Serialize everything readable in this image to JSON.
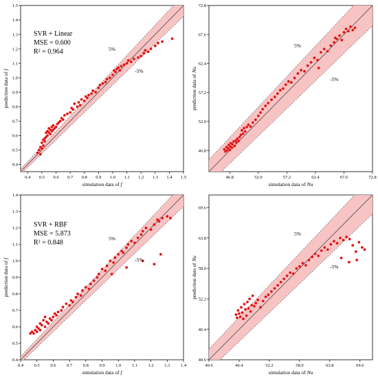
{
  "chart_data": [
    {
      "type": "scatter",
      "xlabel": "simulation data of f",
      "ylabel": "prediction data of f",
      "xlim": [
        0.35,
        1.5
      ],
      "ylim": [
        0.35,
        1.5
      ],
      "xticks": [
        "0.4",
        "0.5",
        "0.6",
        "0.7",
        "0.8",
        "0.9",
        "1.0",
        "1.1",
        "1.2",
        "1.3",
        "1.4",
        "1.5"
      ],
      "yticks": [
        "0.4",
        "0.5",
        "0.6",
        "0.7",
        "0.8",
        "0.9",
        "1.0",
        "1.1",
        "1.2",
        "1.3",
        "1.4",
        "1.5"
      ],
      "band_upper_label": "5%",
      "band_lower_label": "-5%",
      "legend": {
        "method": "SVR + Linear",
        "mse": "MSE = 0.600",
        "r2": "R² = 0.964"
      },
      "series": [
        {
          "x": [
            0.47,
            0.48,
            0.49,
            0.49,
            0.5,
            0.5,
            0.51,
            0.51,
            0.52,
            0.52,
            0.53,
            0.53,
            0.54,
            0.54,
            0.55,
            0.55,
            0.56,
            0.56,
            0.57,
            0.57,
            0.58,
            0.58,
            0.59,
            0.6,
            0.61,
            0.62,
            0.63,
            0.64,
            0.65,
            0.66,
            0.68,
            0.7,
            0.71,
            0.72,
            0.73,
            0.75,
            0.76,
            0.77,
            0.78,
            0.8,
            0.81,
            0.82,
            0.83,
            0.85,
            0.86,
            0.88,
            0.9,
            0.91,
            0.93,
            0.95,
            0.96,
            0.98,
            1.0,
            1.01,
            1.02,
            1.03,
            1.04,
            1.05,
            1.06,
            1.08,
            1.1,
            1.11,
            1.13,
            1.15,
            1.18,
            1.2,
            1.22,
            1.23,
            1.25,
            1.27,
            1.3,
            1.32,
            1.35,
            1.42
          ],
          "y": [
            0.48,
            0.5,
            0.52,
            0.47,
            0.55,
            0.51,
            0.57,
            0.53,
            0.58,
            0.56,
            0.59,
            0.62,
            0.6,
            0.63,
            0.62,
            0.65,
            0.64,
            0.61,
            0.66,
            0.63,
            0.64,
            0.67,
            0.65,
            0.66,
            0.68,
            0.69,
            0.7,
            0.72,
            0.71,
            0.74,
            0.75,
            0.76,
            0.79,
            0.78,
            0.82,
            0.8,
            0.83,
            0.81,
            0.85,
            0.84,
            0.87,
            0.86,
            0.88,
            0.89,
            0.91,
            0.9,
            0.93,
            0.95,
            0.96,
            0.97,
            0.99,
            1.0,
            1.02,
            1.05,
            1.04,
            1.06,
            1.07,
            1.05,
            1.08,
            1.09,
            1.1,
            1.12,
            1.11,
            1.13,
            1.14,
            1.15,
            1.17,
            1.19,
            1.18,
            1.2,
            1.22,
            1.24,
            1.25,
            1.27
          ]
        }
      ]
    },
    {
      "type": "scatter",
      "xlabel": "simulation data of Nu",
      "ylabel": "prediction data of Nu",
      "xlim": [
        43.0,
        72.8
      ],
      "ylim": [
        43.0,
        72.8
      ],
      "xticks": [
        "46.8",
        "52.0",
        "57.2",
        "62.4",
        "67.6",
        "72.8"
      ],
      "yticks": [
        "46.8",
        "52.0",
        "57.2",
        "62.4",
        "67.6",
        "72.8"
      ],
      "band_upper_label": "5%",
      "band_lower_label": "-5%",
      "series": [
        {
          "x": [
            45.8,
            46.0,
            46.2,
            46.3,
            46.5,
            46.6,
            46.8,
            46.9,
            47.0,
            47.2,
            47.3,
            47.5,
            47.7,
            47.9,
            48.0,
            48.2,
            48.4,
            48.6,
            48.8,
            49.0,
            49.2,
            49.4,
            49.6,
            49.9,
            50.2,
            50.6,
            51.0,
            51.5,
            52.0,
            52.4,
            52.8,
            53.3,
            53.8,
            54.4,
            55.0,
            55.5,
            56.0,
            56.5,
            57.0,
            57.5,
            58.0,
            58.6,
            59.2,
            59.8,
            60.4,
            61.0,
            61.6,
            62.2,
            62.8,
            63.4,
            64.0,
            64.6,
            65.2,
            65.8,
            66.3,
            66.8,
            67.2,
            67.6,
            68.0,
            68.4,
            68.8,
            69.2,
            69.6,
            66.0,
            63.0
          ],
          "y": [
            47.0,
            46.6,
            47.4,
            46.8,
            47.2,
            47.8,
            46.9,
            47.5,
            48.1,
            47.3,
            47.9,
            48.4,
            47.6,
            48.6,
            48.2,
            48.9,
            48.5,
            49.2,
            49.6,
            50.4,
            49.8,
            50.8,
            50.2,
            51.0,
            51.4,
            51.1,
            51.8,
            52.3,
            53.0,
            53.6,
            54.2,
            54.8,
            55.3,
            55.9,
            56.4,
            57.0,
            57.6,
            57.9,
            58.6,
            59.2,
            59.0,
            59.8,
            60.6,
            61.2,
            61.0,
            62.0,
            62.6,
            63.4,
            63.0,
            64.4,
            65.0,
            64.6,
            65.6,
            66.2,
            66.8,
            67.4,
            66.6,
            68.0,
            68.6,
            68.2,
            69.0,
            68.4,
            68.8,
            67.0,
            61.6
          ]
        }
      ]
    },
    {
      "type": "scatter",
      "xlabel": "simulation data of f",
      "ylabel": "prediction data of f",
      "xlim": [
        0.4,
        1.4
      ],
      "ylim": [
        0.4,
        1.4
      ],
      "xticks": [
        "0.4",
        "0.5",
        "0.6",
        "0.7",
        "0.8",
        "0.9",
        "1.0",
        "1.1",
        "1.2",
        "1.3",
        "1.4"
      ],
      "yticks": [
        "0.4",
        "0.5",
        "0.6",
        "0.7",
        "0.8",
        "0.9",
        "1.0",
        "1.1",
        "1.2",
        "1.3",
        "1.4"
      ],
      "band_upper_label": "5%",
      "band_lower_label": "-5%",
      "legend": {
        "method": "SVR + RBF",
        "mse": "MSE = 5.873",
        "r2": "R² = 0.848"
      },
      "series": [
        {
          "x": [
            0.46,
            0.47,
            0.48,
            0.49,
            0.5,
            0.5,
            0.51,
            0.52,
            0.52,
            0.53,
            0.54,
            0.55,
            0.55,
            0.56,
            0.57,
            0.58,
            0.59,
            0.6,
            0.61,
            0.62,
            0.63,
            0.65,
            0.66,
            0.68,
            0.7,
            0.71,
            0.72,
            0.74,
            0.75,
            0.77,
            0.78,
            0.8,
            0.82,
            0.83,
            0.85,
            0.87,
            0.88,
            0.9,
            0.92,
            0.93,
            0.95,
            0.97,
            0.98,
            1.0,
            1.02,
            1.03,
            1.05,
            1.06,
            1.08,
            1.1,
            1.12,
            1.14,
            1.15,
            1.17,
            1.2,
            1.22,
            1.24,
            1.25,
            1.27,
            1.3,
            1.32,
            0.96,
            1.05,
            1.15,
            1.22,
            1.26
          ],
          "y": [
            0.56,
            0.57,
            0.56,
            0.58,
            0.6,
            0.57,
            0.59,
            0.62,
            0.58,
            0.61,
            0.64,
            0.6,
            0.66,
            0.63,
            0.62,
            0.65,
            0.64,
            0.66,
            0.68,
            0.67,
            0.69,
            0.7,
            0.72,
            0.74,
            0.73,
            0.76,
            0.75,
            0.78,
            0.8,
            0.79,
            0.82,
            0.84,
            0.83,
            0.86,
            0.88,
            0.9,
            0.92,
            0.95,
            0.94,
            0.97,
            1.0,
            0.99,
            1.02,
            1.04,
            1.06,
            1.05,
            1.08,
            1.1,
            1.12,
            1.11,
            1.14,
            1.16,
            1.18,
            1.2,
            1.19,
            1.22,
            1.25,
            1.24,
            1.26,
            1.27,
            1.26,
            0.92,
            0.96,
            1.0,
            0.98,
            1.04
          ]
        }
      ]
    },
    {
      "type": "scatter",
      "xlabel": "simulation data of Nu",
      "ylabel": "prediction data of Nu",
      "xlim": [
        40.6,
        72.0
      ],
      "ylim": [
        40.6,
        72.0
      ],
      "xticks": [
        "40.6",
        "46.4",
        "52.2",
        "58.0",
        "63.8",
        "69.6"
      ],
      "yticks": [
        "40.6",
        "46.4",
        "52.2",
        "58.0",
        "63.8",
        "69.6"
      ],
      "band_upper_label": "5%",
      "band_lower_label": "-5%",
      "series": [
        {
          "x": [
            45.8,
            46.0,
            46.2,
            46.4,
            46.6,
            46.8,
            47.0,
            47.2,
            47.4,
            47.6,
            47.8,
            48.0,
            48.2,
            48.4,
            48.6,
            48.8,
            49.0,
            49.3,
            49.6,
            50.0,
            50.5,
            51.0,
            51.5,
            52.0,
            52.6,
            53.2,
            53.8,
            54.4,
            55.0,
            55.6,
            56.2,
            56.8,
            57.4,
            58.0,
            58.6,
            59.2,
            59.8,
            60.4,
            61.0,
            61.6,
            62.2,
            62.8,
            63.4,
            64.0,
            64.6,
            65.2,
            65.8,
            66.4,
            67.0,
            67.6,
            68.2,
            68.8,
            69.4,
            70.0,
            70.5,
            66.0,
            67.5,
            69.0
          ],
          "y": [
            49.2,
            48.6,
            50.0,
            49.4,
            48.8,
            50.6,
            49.6,
            48.4,
            51.2,
            50.2,
            49.0,
            51.6,
            50.4,
            52.2,
            49.8,
            51.0,
            52.8,
            50.8,
            51.4,
            52.0,
            50.6,
            51.8,
            52.6,
            53.0,
            53.6,
            54.2,
            54.8,
            55.4,
            56.0,
            56.6,
            57.2,
            57.0,
            58.0,
            58.4,
            59.0,
            58.6,
            59.6,
            60.2,
            60.8,
            60.4,
            61.4,
            62.0,
            61.6,
            62.6,
            63.2,
            62.8,
            63.8,
            63.4,
            64.0,
            63.6,
            62.4,
            61.2,
            63.0,
            62.0,
            61.6,
            60.0,
            59.2,
            59.6
          ]
        }
      ]
    }
  ]
}
